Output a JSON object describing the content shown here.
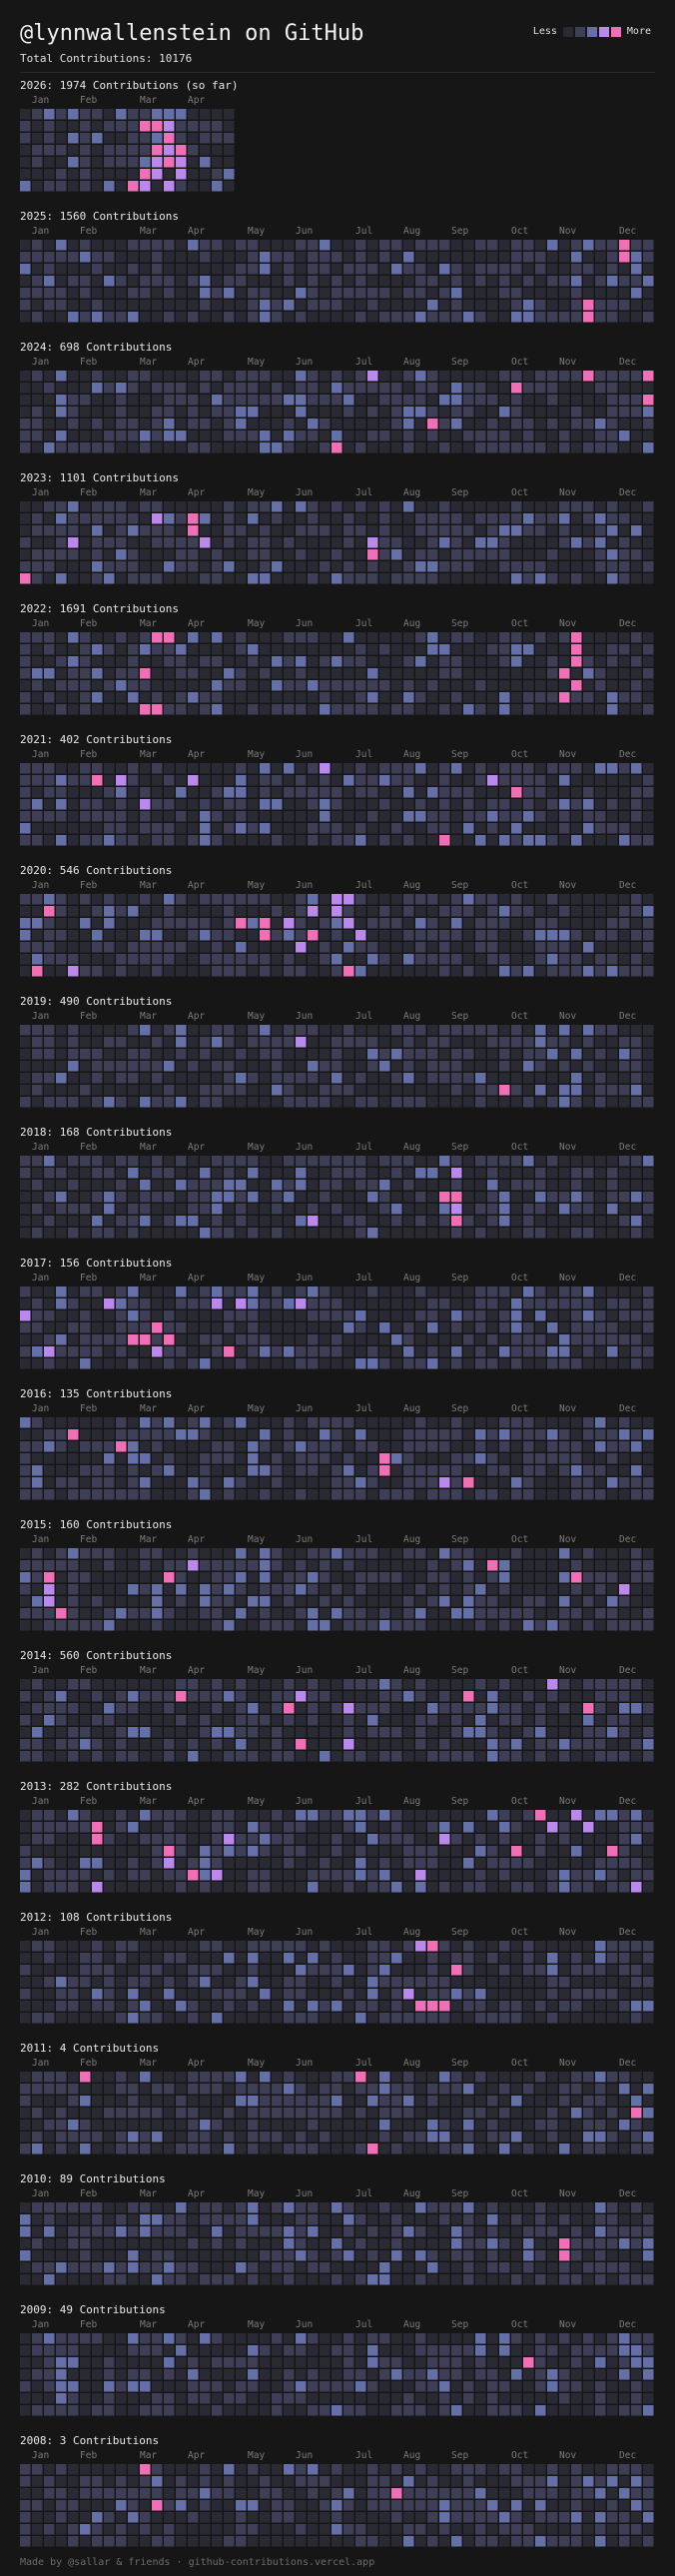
{
  "header": {
    "title": "@lynnwallenstein on GitHub",
    "legend_less": "Less",
    "legend_more": "More",
    "legend_colors": [
      "#2a2a34",
      "#3e3e56",
      "#6570a8",
      "#bb88ee",
      "#f26fb8"
    ]
  },
  "total_label": "Total Contributions: 10176",
  "years": [
    {
      "title": "2026: 1974 Contributions (so far)",
      "months": [
        "Jan",
        "Feb",
        "Mar",
        "Apr"
      ],
      "weeks": 18,
      "hot": [
        [
          10,
          1,
          4
        ],
        [
          11,
          1,
          4
        ],
        [
          12,
          1,
          3
        ],
        [
          12,
          2,
          4
        ],
        [
          11,
          3,
          4
        ],
        [
          12,
          3,
          3
        ],
        [
          13,
          3,
          4
        ],
        [
          11,
          4,
          3
        ],
        [
          12,
          4,
          4
        ],
        [
          13,
          4,
          3
        ],
        [
          10,
          5,
          4
        ],
        [
          11,
          5,
          3
        ],
        [
          13,
          5,
          3
        ],
        [
          9,
          6,
          4
        ],
        [
          12,
          6,
          3
        ],
        [
          10,
          6,
          3
        ]
      ]
    },
    {
      "title": "2025: 1560 Contributions",
      "months": [
        "Jan",
        "Feb",
        "Mar",
        "Apr",
        "May",
        "Jun",
        "Jul",
        "Aug",
        "Sep",
        "Oct",
        "Nov",
        "Dec"
      ],
      "weeks": 53,
      "hot": [
        [
          50,
          0,
          4
        ],
        [
          50,
          1,
          4
        ],
        [
          47,
          5,
          4
        ],
        [
          47,
          6,
          4
        ],
        [
          49,
          3,
          2
        ]
      ]
    },
    {
      "title": "2024: 698 Contributions",
      "months": [
        "Jan",
        "Feb",
        "Mar",
        "Apr",
        "May",
        "Jun",
        "Jul",
        "Aug",
        "Sep",
        "Oct",
        "Nov",
        "Dec"
      ],
      "weeks": 53,
      "hot": [
        [
          29,
          0,
          3
        ],
        [
          47,
          0,
          4
        ],
        [
          52,
          0,
          4
        ],
        [
          41,
          1,
          4
        ],
        [
          52,
          2,
          4
        ],
        [
          34,
          4,
          4
        ],
        [
          26,
          6,
          4
        ]
      ]
    },
    {
      "title": "2023: 1101 Contributions",
      "months": [
        "Jan",
        "Feb",
        "Mar",
        "Apr",
        "May",
        "Jun",
        "Jul",
        "Aug",
        "Sep",
        "Oct",
        "Nov",
        "Dec"
      ],
      "weeks": 53,
      "hot": [
        [
          11,
          1,
          3
        ],
        [
          14,
          1,
          4
        ],
        [
          14,
          2,
          4
        ],
        [
          4,
          3,
          3
        ],
        [
          15,
          3,
          3
        ],
        [
          29,
          3,
          3
        ],
        [
          29,
          4,
          4
        ],
        [
          0,
          6,
          4
        ]
      ]
    },
    {
      "title": "2022: 1691 Contributions",
      "months": [
        "Jan",
        "Feb",
        "Mar",
        "Apr",
        "May",
        "Jun",
        "Jul",
        "Aug",
        "Sep",
        "Oct",
        "Nov",
        "Dec"
      ],
      "weeks": 53,
      "hot": [
        [
          11,
          0,
          4
        ],
        [
          12,
          0,
          4
        ],
        [
          46,
          0,
          4
        ],
        [
          46,
          1,
          4
        ],
        [
          46,
          2,
          4
        ],
        [
          10,
          3,
          4
        ],
        [
          45,
          3,
          4
        ],
        [
          46,
          4,
          4
        ],
        [
          45,
          5,
          4
        ],
        [
          10,
          6,
          4
        ],
        [
          11,
          6,
          4
        ]
      ]
    },
    {
      "title": "2021: 402 Contributions",
      "months": [
        "Jan",
        "Feb",
        "Mar",
        "Apr",
        "May",
        "Jun",
        "Jul",
        "Aug",
        "Sep",
        "Oct",
        "Nov",
        "Dec"
      ],
      "weeks": 53,
      "hot": [
        [
          25,
          0,
          3
        ],
        [
          6,
          1,
          4
        ],
        [
          8,
          1,
          3
        ],
        [
          14,
          1,
          3
        ],
        [
          39,
          1,
          3
        ],
        [
          41,
          2,
          4
        ],
        [
          10,
          3,
          3
        ],
        [
          35,
          6,
          4
        ]
      ]
    },
    {
      "title": "2020: 546 Contributions",
      "months": [
        "Jan",
        "Feb",
        "Mar",
        "Apr",
        "May",
        "Jun",
        "Jul",
        "Aug",
        "Sep",
        "Oct",
        "Nov",
        "Dec"
      ],
      "weeks": 53,
      "hot": [
        [
          26,
          0,
          3
        ],
        [
          27,
          0,
          3
        ],
        [
          2,
          1,
          4
        ],
        [
          24,
          1,
          3
        ],
        [
          26,
          1,
          3
        ],
        [
          18,
          2,
          4
        ],
        [
          20,
          2,
          4
        ],
        [
          22,
          2,
          3
        ],
        [
          27,
          2,
          3
        ],
        [
          20,
          3,
          4
        ],
        [
          24,
          3,
          4
        ],
        [
          28,
          3,
          3
        ],
        [
          23,
          4,
          3
        ],
        [
          1,
          6,
          4
        ],
        [
          4,
          6,
          3
        ],
        [
          27,
          6,
          4
        ]
      ]
    },
    {
      "title": "2019: 490 Contributions",
      "months": [
        "Jan",
        "Feb",
        "Mar",
        "Apr",
        "May",
        "Jun",
        "Jul",
        "Aug",
        "Sep",
        "Oct",
        "Nov",
        "Dec"
      ],
      "weeks": 53,
      "hot": [
        [
          23,
          1,
          3
        ],
        [
          40,
          5,
          4
        ]
      ]
    },
    {
      "title": "2018: 168 Contributions",
      "months": [
        "Jan",
        "Feb",
        "Mar",
        "Apr",
        "May",
        "Jun",
        "Jul",
        "Aug",
        "Sep",
        "Oct",
        "Nov",
        "Dec"
      ],
      "weeks": 53,
      "hot": [
        [
          36,
          1,
          3
        ],
        [
          35,
          3,
          4
        ],
        [
          36,
          3,
          4
        ],
        [
          36,
          4,
          3
        ],
        [
          24,
          5,
          3
        ],
        [
          36,
          5,
          4
        ]
      ]
    },
    {
      "title": "2017: 156 Contributions",
      "months": [
        "Jan",
        "Feb",
        "Mar",
        "Apr",
        "May",
        "Jun",
        "Jul",
        "Aug",
        "Sep",
        "Oct",
        "Nov",
        "Dec"
      ],
      "weeks": 53,
      "hot": [
        [
          7,
          1,
          3
        ],
        [
          16,
          1,
          3
        ],
        [
          18,
          1,
          3
        ],
        [
          23,
          1,
          3
        ],
        [
          0,
          2,
          3
        ],
        [
          11,
          3,
          4
        ],
        [
          9,
          4,
          4
        ],
        [
          10,
          4,
          4
        ],
        [
          12,
          4,
          4
        ],
        [
          11,
          5,
          3
        ],
        [
          17,
          5,
          4
        ],
        [
          2,
          5,
          3
        ]
      ]
    },
    {
      "title": "2016: 135 Contributions",
      "months": [
        "Jan",
        "Feb",
        "Mar",
        "Apr",
        "May",
        "Jun",
        "Jul",
        "Aug",
        "Sep",
        "Oct",
        "Nov",
        "Dec"
      ],
      "weeks": 53,
      "hot": [
        [
          4,
          1,
          4
        ],
        [
          8,
          2,
          4
        ],
        [
          30,
          3,
          4
        ],
        [
          30,
          4,
          4
        ],
        [
          35,
          5,
          3
        ],
        [
          37,
          5,
          4
        ]
      ]
    },
    {
      "title": "2015: 160 Contributions",
      "months": [
        "Jan",
        "Feb",
        "Mar",
        "Apr",
        "May",
        "Jun",
        "Jul",
        "Aug",
        "Sep",
        "Oct",
        "Nov",
        "Dec"
      ],
      "weeks": 53,
      "hot": [
        [
          14,
          1,
          3
        ],
        [
          39,
          1,
          4
        ],
        [
          2,
          2,
          4
        ],
        [
          12,
          2,
          4
        ],
        [
          46,
          2,
          4
        ],
        [
          2,
          3,
          3
        ],
        [
          50,
          3,
          3
        ],
        [
          2,
          4,
          3
        ],
        [
          3,
          5,
          4
        ]
      ]
    },
    {
      "title": "2014: 560 Contributions",
      "months": [
        "Jan",
        "Feb",
        "Mar",
        "Apr",
        "May",
        "Jun",
        "Jul",
        "Aug",
        "Sep",
        "Oct",
        "Nov",
        "Dec"
      ],
      "weeks": 53,
      "hot": [
        [
          44,
          0,
          3
        ],
        [
          13,
          1,
          4
        ],
        [
          23,
          1,
          3
        ],
        [
          37,
          1,
          4
        ],
        [
          22,
          2,
          4
        ],
        [
          27,
          2,
          3
        ],
        [
          47,
          2,
          4
        ],
        [
          23,
          5,
          4
        ],
        [
          27,
          5,
          3
        ]
      ]
    },
    {
      "title": "2013: 282 Contributions",
      "months": [
        "Jan",
        "Feb",
        "Mar",
        "Apr",
        "May",
        "Jun",
        "Jul",
        "Aug",
        "Sep",
        "Oct",
        "Nov",
        "Dec"
      ],
      "weeks": 53,
      "hot": [
        [
          43,
          0,
          4
        ],
        [
          46,
          0,
          3
        ],
        [
          6,
          1,
          4
        ],
        [
          44,
          1,
          3
        ],
        [
          47,
          1,
          3
        ],
        [
          6,
          2,
          4
        ],
        [
          17,
          2,
          3
        ],
        [
          35,
          2,
          3
        ],
        [
          12,
          3,
          4
        ],
        [
          41,
          3,
          4
        ],
        [
          49,
          3,
          4
        ],
        [
          12,
          4,
          3
        ],
        [
          14,
          5,
          4
        ],
        [
          16,
          5,
          3
        ],
        [
          33,
          5,
          3
        ],
        [
          6,
          6,
          3
        ],
        [
          51,
          6,
          3
        ]
      ]
    },
    {
      "title": "2012: 108 Contributions",
      "months": [
        "Jan",
        "Feb",
        "Mar",
        "Apr",
        "May",
        "Jun",
        "Jul",
        "Aug",
        "Sep",
        "Oct",
        "Nov",
        "Dec"
      ],
      "weeks": 53,
      "hot": [
        [
          33,
          0,
          3
        ],
        [
          34,
          0,
          4
        ],
        [
          36,
          2,
          4
        ],
        [
          32,
          4,
          3
        ],
        [
          33,
          5,
          4
        ],
        [
          34,
          5,
          4
        ],
        [
          35,
          5,
          4
        ]
      ]
    },
    {
      "title": "2011: 4 Contributions",
      "months": [
        "Jan",
        "Feb",
        "Mar",
        "Apr",
        "May",
        "Jun",
        "Jul",
        "Aug",
        "Sep",
        "Oct",
        "Nov",
        "Dec"
      ],
      "weeks": 53,
      "hot": [
        [
          5,
          0,
          4
        ],
        [
          28,
          0,
          4
        ],
        [
          51,
          3,
          4
        ],
        [
          29,
          6,
          4
        ]
      ]
    },
    {
      "title": "2010: 89 Contributions",
      "months": [
        "Jan",
        "Feb",
        "Mar",
        "Apr",
        "May",
        "Jun",
        "Jul",
        "Aug",
        "Sep",
        "Oct",
        "Nov",
        "Dec"
      ],
      "weeks": 53,
      "hot": [
        [
          45,
          3,
          4
        ],
        [
          45,
          4,
          4
        ]
      ]
    },
    {
      "title": "2009: 49 Contributions",
      "months": [
        "Jan",
        "Feb",
        "Mar",
        "Apr",
        "May",
        "Jun",
        "Jul",
        "Aug",
        "Sep",
        "Oct",
        "Nov",
        "Dec"
      ],
      "weeks": 53,
      "hot": [
        [
          42,
          2,
          4
        ]
      ]
    },
    {
      "title": "2008: 3 Contributions",
      "months": [
        "Jan",
        "Feb",
        "Mar",
        "Apr",
        "May",
        "Jun",
        "Jul",
        "Aug",
        "Sep",
        "Oct",
        "Nov",
        "Dec"
      ],
      "weeks": 53,
      "hot": [
        [
          10,
          0,
          4
        ],
        [
          31,
          2,
          4
        ],
        [
          11,
          3,
          4
        ]
      ]
    }
  ],
  "footer": "Made by @sallar & friends · github-contributions.vercel.app"
}
